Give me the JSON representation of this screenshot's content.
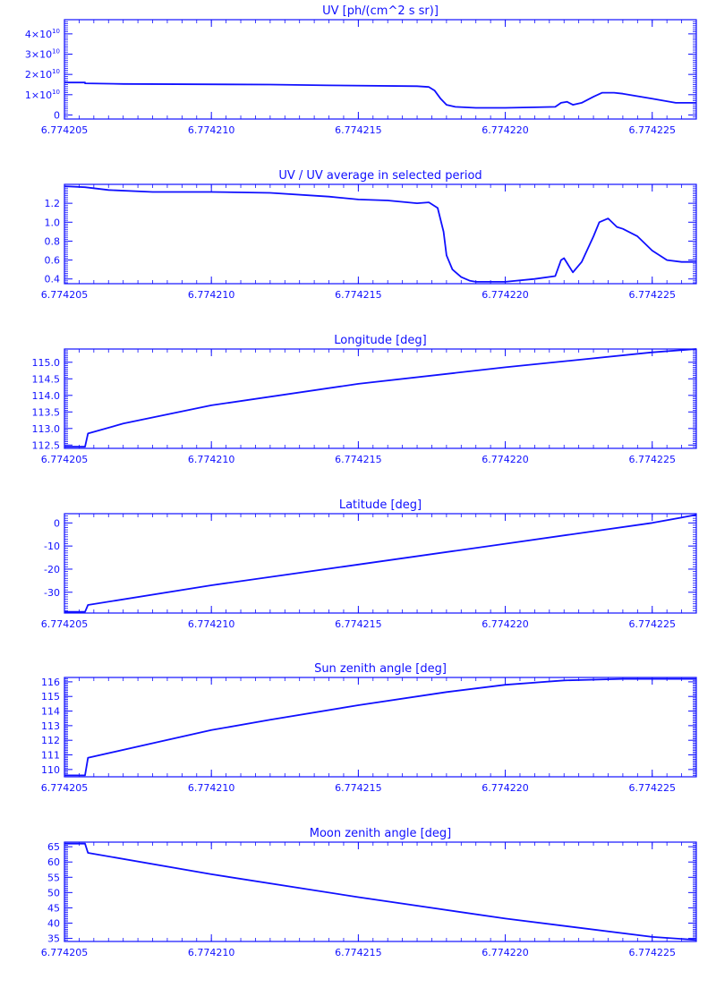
{
  "theme": {
    "color": "#1010ff",
    "background": "#ffffff"
  },
  "chart_data": [
    {
      "type": "line",
      "title": "UV [ph/(cm^2 s sr)]",
      "xlabel": "",
      "ylabel": "",
      "xlim": [
        6.774205,
        6.7742265
      ],
      "ylim": [
        -2000000000,
        47000000000
      ],
      "x_ticks": [
        6.774205,
        6.77421,
        6.774215,
        6.77422,
        6.774225
      ],
      "x_tick_labels": [
        "6.774205",
        "6.774210",
        "6.774215",
        "6.774220",
        "6.774225"
      ],
      "y_ticks": [
        0,
        10000000000,
        20000000000,
        30000000000,
        40000000000
      ],
      "y_tick_labels": [
        {
          "m": "",
          "e": "",
          "plain": "0"
        },
        {
          "m": "1×10",
          "e": "10"
        },
        {
          "m": "2×10",
          "e": "10"
        },
        {
          "m": "3×10",
          "e": "10"
        },
        {
          "m": "4×10",
          "e": "10"
        }
      ],
      "grid": false,
      "series": [
        {
          "values": [
            [
              6.774205,
              16000000000
            ],
            [
              6.7742057,
              16000000000
            ],
            [
              6.7742057,
              15600000000
            ],
            [
              6.774207,
              15300000000
            ],
            [
              6.774212,
              15000000000
            ],
            [
              6.774214,
              14600000000
            ],
            [
              6.774217,
              14200000000
            ],
            [
              6.7742174,
              13800000000
            ],
            [
              6.7742176,
              12000000000
            ],
            [
              6.7742178,
              8000000000
            ],
            [
              6.774218,
              5000000000
            ],
            [
              6.7742183,
              4000000000
            ],
            [
              6.774219,
              3500000000
            ],
            [
              6.77422,
              3500000000
            ],
            [
              6.774221,
              3800000000
            ],
            [
              6.7742217,
              4000000000
            ],
            [
              6.7742219,
              6000000000
            ],
            [
              6.7742221,
              6500000000
            ],
            [
              6.7742223,
              5000000000
            ],
            [
              6.7742226,
              6000000000
            ],
            [
              6.774223,
              9000000000
            ],
            [
              6.7742233,
              11000000000
            ],
            [
              6.7742237,
              11000000000
            ],
            [
              6.774224,
              10500000000
            ],
            [
              6.774225,
              8000000000
            ],
            [
              6.7742258,
              6000000000
            ],
            [
              6.7742265,
              6000000000
            ]
          ]
        }
      ]
    },
    {
      "type": "line",
      "title": "UV / UV average in selected period",
      "xlabel": "",
      "ylabel": "",
      "xlim": [
        6.774205,
        6.7742265
      ],
      "ylim": [
        0.35,
        1.4
      ],
      "x_ticks": [
        6.774205,
        6.77421,
        6.774215,
        6.77422,
        6.774225
      ],
      "x_tick_labels": [
        "6.774205",
        "6.774210",
        "6.774215",
        "6.774220",
        "6.774225"
      ],
      "y_ticks": [
        0.4,
        0.6,
        0.8,
        1.0,
        1.2
      ],
      "y_tick_labels": [
        {
          "plain": "0.4"
        },
        {
          "plain": "0.6"
        },
        {
          "plain": "0.8"
        },
        {
          "plain": "1.0"
        },
        {
          "plain": "1.2"
        }
      ],
      "grid": false,
      "series": [
        {
          "values": [
            [
              6.774205,
              1.38
            ],
            [
              6.7742057,
              1.37
            ],
            [
              6.7742065,
              1.34
            ],
            [
              6.774208,
              1.32
            ],
            [
              6.77421,
              1.32
            ],
            [
              6.774212,
              1.31
            ],
            [
              6.774214,
              1.27
            ],
            [
              6.774215,
              1.24
            ],
            [
              6.774216,
              1.23
            ],
            [
              6.774217,
              1.2
            ],
            [
              6.7742174,
              1.21
            ],
            [
              6.7742177,
              1.15
            ],
            [
              6.7742179,
              0.9
            ],
            [
              6.774218,
              0.65
            ],
            [
              6.7742182,
              0.5
            ],
            [
              6.7742185,
              0.42
            ],
            [
              6.7742188,
              0.38
            ],
            [
              6.774219,
              0.37
            ],
            [
              6.77422,
              0.37
            ],
            [
              6.774221,
              0.4
            ],
            [
              6.7742217,
              0.43
            ],
            [
              6.7742219,
              0.6
            ],
            [
              6.774222,
              0.62
            ],
            [
              6.7742223,
              0.47
            ],
            [
              6.7742226,
              0.58
            ],
            [
              6.774223,
              0.85
            ],
            [
              6.7742232,
              1.0
            ],
            [
              6.7742235,
              1.04
            ],
            [
              6.7742238,
              0.95
            ],
            [
              6.774224,
              0.93
            ],
            [
              6.7742245,
              0.85
            ],
            [
              6.774225,
              0.7
            ],
            [
              6.7742255,
              0.6
            ],
            [
              6.774226,
              0.58
            ],
            [
              6.7742265,
              0.58
            ]
          ]
        }
      ]
    },
    {
      "type": "line",
      "title": "Longitude [deg]",
      "xlabel": "",
      "ylabel": "",
      "xlim": [
        6.774205,
        6.7742265
      ],
      "ylim": [
        112.4,
        115.4
      ],
      "x_ticks": [
        6.774205,
        6.77421,
        6.774215,
        6.77422,
        6.774225
      ],
      "x_tick_labels": [
        "6.774205",
        "6.774210",
        "6.774215",
        "6.774220",
        "6.774225"
      ],
      "y_ticks": [
        112.5,
        113.0,
        113.5,
        114.0,
        114.5,
        115.0
      ],
      "y_tick_labels": [
        {
          "plain": "112.5"
        },
        {
          "plain": "113.0"
        },
        {
          "plain": "113.5"
        },
        {
          "plain": "114.0"
        },
        {
          "plain": "114.5"
        },
        {
          "plain": "115.0"
        }
      ],
      "grid": false,
      "series": [
        {
          "values": [
            [
              6.774205,
              112.45
            ],
            [
              6.7742057,
              112.45
            ],
            [
              6.7742058,
              112.85
            ],
            [
              6.774207,
              113.15
            ],
            [
              6.77421,
              113.7
            ],
            [
              6.774215,
              114.35
            ],
            [
              6.77422,
              114.85
            ],
            [
              6.774225,
              115.3
            ],
            [
              6.7742265,
              115.4
            ]
          ]
        }
      ]
    },
    {
      "type": "line",
      "title": "Latitude [deg]",
      "xlabel": "",
      "ylabel": "",
      "xlim": [
        6.774205,
        6.7742265
      ],
      "ylim": [
        -39,
        4
      ],
      "x_ticks": [
        6.774205,
        6.77421,
        6.774215,
        6.77422,
        6.774225
      ],
      "x_tick_labels": [
        "6.774205",
        "6.774210",
        "6.774215",
        "6.774220",
        "6.774225"
      ],
      "y_ticks": [
        -30,
        -20,
        -10,
        0
      ],
      "y_tick_labels": [
        {
          "plain": "-30"
        },
        {
          "plain": "-20"
        },
        {
          "plain": "-10"
        },
        {
          "plain": "0"
        }
      ],
      "grid": false,
      "series": [
        {
          "values": [
            [
              6.774205,
              -38.5
            ],
            [
              6.7742057,
              -38.5
            ],
            [
              6.7742058,
              -35.5
            ],
            [
              6.77421,
              -27
            ],
            [
              6.774215,
              -18
            ],
            [
              6.77422,
              -9
            ],
            [
              6.774225,
              0
            ],
            [
              6.7742265,
              3.5
            ]
          ]
        }
      ]
    },
    {
      "type": "line",
      "title": "Sun zenith angle [deg]",
      "xlabel": "",
      "ylabel": "",
      "xlim": [
        6.774205,
        6.7742265
      ],
      "ylim": [
        109.5,
        116.3
      ],
      "x_ticks": [
        6.774205,
        6.77421,
        6.774215,
        6.77422,
        6.774225
      ],
      "x_tick_labels": [
        "6.774205",
        "6.774210",
        "6.774215",
        "6.774220",
        "6.774225"
      ],
      "y_ticks": [
        110,
        111,
        112,
        113,
        114,
        115,
        116
      ],
      "y_tick_labels": [
        {
          "plain": "110"
        },
        {
          "plain": "111"
        },
        {
          "plain": "112"
        },
        {
          "plain": "113"
        },
        {
          "plain": "114"
        },
        {
          "plain": "115"
        },
        {
          "plain": "116"
        }
      ],
      "grid": false,
      "series": [
        {
          "values": [
            [
              6.774205,
              109.6
            ],
            [
              6.7742057,
              109.6
            ],
            [
              6.7742058,
              110.8
            ],
            [
              6.774208,
              111.8
            ],
            [
              6.77421,
              112.7
            ],
            [
              6.774212,
              113.4
            ],
            [
              6.774215,
              114.4
            ],
            [
              6.774218,
              115.3
            ],
            [
              6.77422,
              115.8
            ],
            [
              6.774222,
              116.1
            ],
            [
              6.774224,
              116.2
            ],
            [
              6.7742265,
              116.2
            ]
          ]
        }
      ]
    },
    {
      "type": "line",
      "title": "Moon zenith angle [deg]",
      "xlabel": "",
      "ylabel": "",
      "xlim": [
        6.774205,
        6.7742265
      ],
      "ylim": [
        34,
        66.5
      ],
      "x_ticks": [
        6.774205,
        6.77421,
        6.774215,
        6.77422,
        6.774225
      ],
      "x_tick_labels": [
        "6.774205",
        "6.774210",
        "6.774215",
        "6.774220",
        "6.774225"
      ],
      "y_ticks": [
        35,
        40,
        45,
        50,
        55,
        60,
        65
      ],
      "y_tick_labels": [
        {
          "plain": "35"
        },
        {
          "plain": "40"
        },
        {
          "plain": "45"
        },
        {
          "plain": "50"
        },
        {
          "plain": "55"
        },
        {
          "plain": "60"
        },
        {
          "plain": "65"
        }
      ],
      "grid": false,
      "series": [
        {
          "values": [
            [
              6.774205,
              66
            ],
            [
              6.7742057,
              66
            ],
            [
              6.7742058,
              63
            ],
            [
              6.77421,
              56
            ],
            [
              6.774215,
              48.5
            ],
            [
              6.77422,
              41.5
            ],
            [
              6.774225,
              35.5
            ],
            [
              6.7742265,
              34.5
            ]
          ]
        }
      ]
    }
  ]
}
